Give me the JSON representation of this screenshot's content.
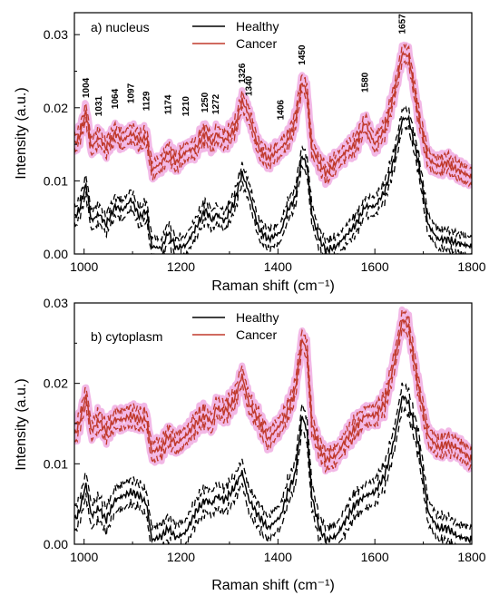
{
  "colors": {
    "healthy": "#000000",
    "cancer": "#c0392b",
    "cancer_band": "#f2b8e6"
  },
  "chart_data": [
    {
      "type": "line",
      "panel_label": "a) nucleus",
      "xlabel": "Raman shift (cm⁻¹)",
      "ylabel": "Intensity (a.u.)",
      "xlim": [
        980,
        1800
      ],
      "ylim": [
        0,
        0.033
      ],
      "x_ticks": [
        1000,
        1200,
        1400,
        1600,
        1800
      ],
      "x_tick_labels": [
        "1000",
        "1200",
        "1400",
        "1600",
        "1800"
      ],
      "y_ticks": [
        0,
        0.01,
        0.02,
        0.03
      ],
      "y_tick_labels": [
        "0.00",
        "0.01",
        "0.02",
        "0.03"
      ],
      "legend": {
        "placement": "top-center",
        "entries": [
          "Healthy",
          "Cancer"
        ]
      },
      "peak_labels": [
        "1004",
        "1031",
        "1064",
        "1097",
        "1129",
        "1174",
        "1210",
        "1250",
        "1272",
        "1326",
        "1340",
        "1406",
        "1450",
        "1580",
        "1657"
      ],
      "series": [
        {
          "name": "Healthy",
          "x": [
            980,
            990,
            1004,
            1015,
            1031,
            1045,
            1064,
            1080,
            1097,
            1115,
            1129,
            1135,
            1140,
            1160,
            1174,
            1190,
            1210,
            1230,
            1250,
            1265,
            1272,
            1290,
            1310,
            1326,
            1340,
            1360,
            1380,
            1406,
            1420,
            1435,
            1450,
            1460,
            1470,
            1485,
            1500,
            1520,
            1540,
            1560,
            1580,
            1600,
            1620,
            1640,
            1657,
            1670,
            1690,
            1710,
            1730,
            1750,
            1770,
            1800
          ],
          "y": [
            0.005,
            0.006,
            0.0095,
            0.0045,
            0.0055,
            0.004,
            0.0065,
            0.006,
            0.0075,
            0.005,
            0.006,
            0.003,
            0.001,
            0.0008,
            0.003,
            0.0008,
            0.0012,
            0.0035,
            0.006,
            0.0045,
            0.0055,
            0.0045,
            0.007,
            0.011,
            0.0085,
            0.0035,
            0.002,
            0.003,
            0.006,
            0.0075,
            0.0135,
            0.012,
            0.0055,
            0.002,
            0.0005,
            0.001,
            0.0025,
            0.004,
            0.0065,
            0.0065,
            0.0085,
            0.013,
            0.0185,
            0.0185,
            0.0125,
            0.004,
            0.002,
            0.002,
            0.0015,
            0.001
          ],
          "spread": 0.0013
        },
        {
          "name": "Cancer",
          "x": [
            980,
            990,
            1004,
            1015,
            1031,
            1045,
            1064,
            1080,
            1097,
            1115,
            1129,
            1135,
            1140,
            1160,
            1174,
            1190,
            1210,
            1230,
            1250,
            1265,
            1272,
            1290,
            1310,
            1326,
            1340,
            1360,
            1380,
            1406,
            1420,
            1435,
            1450,
            1460,
            1470,
            1485,
            1500,
            1520,
            1540,
            1560,
            1580,
            1600,
            1620,
            1640,
            1657,
            1670,
            1690,
            1710,
            1730,
            1750,
            1770,
            1800
          ],
          "y": [
            0.015,
            0.016,
            0.0195,
            0.0145,
            0.016,
            0.0145,
            0.0165,
            0.0155,
            0.0165,
            0.0155,
            0.016,
            0.0135,
            0.0115,
            0.0125,
            0.014,
            0.0125,
            0.014,
            0.0145,
            0.0165,
            0.015,
            0.0165,
            0.0155,
            0.017,
            0.021,
            0.019,
            0.0145,
            0.013,
            0.0145,
            0.0155,
            0.018,
            0.0235,
            0.022,
            0.0145,
            0.0125,
            0.011,
            0.0125,
            0.014,
            0.015,
            0.018,
            0.015,
            0.017,
            0.022,
            0.0275,
            0.027,
            0.019,
            0.013,
            0.012,
            0.0125,
            0.0115,
            0.0105
          ],
          "spread": 0.0011
        }
      ]
    },
    {
      "type": "line",
      "panel_label": "b) cytoplasm",
      "xlabel": "Raman shift (cm⁻¹)",
      "ylabel": "Intensity (a.u.)",
      "xlim": [
        980,
        1800
      ],
      "ylim": [
        0,
        0.03
      ],
      "x_ticks": [
        1000,
        1200,
        1400,
        1600,
        1800
      ],
      "x_tick_labels": [
        "1000",
        "1200",
        "1400",
        "1600",
        "1800"
      ],
      "y_ticks": [
        0,
        0.01,
        0.02,
        0.03
      ],
      "y_tick_labels": [
        "0.00",
        "0.01",
        "0.02",
        "0.03"
      ],
      "legend": {
        "placement": "top-center",
        "entries": [
          "Healthy",
          "Cancer"
        ]
      },
      "series": [
        {
          "name": "Healthy",
          "x": [
            980,
            990,
            1004,
            1015,
            1031,
            1045,
            1064,
            1080,
            1097,
            1115,
            1129,
            1135,
            1140,
            1160,
            1174,
            1190,
            1210,
            1230,
            1250,
            1265,
            1272,
            1290,
            1310,
            1326,
            1340,
            1360,
            1380,
            1406,
            1420,
            1435,
            1450,
            1460,
            1470,
            1485,
            1500,
            1520,
            1540,
            1560,
            1580,
            1600,
            1620,
            1640,
            1657,
            1670,
            1690,
            1710,
            1730,
            1750,
            1770,
            1800
          ],
          "y": [
            0.003,
            0.004,
            0.0075,
            0.0035,
            0.0045,
            0.003,
            0.0055,
            0.006,
            0.0065,
            0.006,
            0.005,
            0.0025,
            0.0005,
            0.001,
            0.002,
            0.0008,
            0.0015,
            0.004,
            0.0055,
            0.005,
            0.006,
            0.0055,
            0.007,
            0.009,
            0.0055,
            0.0035,
            0.002,
            0.0035,
            0.0065,
            0.0085,
            0.016,
            0.014,
            0.006,
            0.002,
            0.0005,
            0.001,
            0.003,
            0.005,
            0.006,
            0.0065,
            0.0085,
            0.013,
            0.0185,
            0.0175,
            0.0125,
            0.004,
            0.002,
            0.002,
            0.001,
            0.0005
          ],
          "spread": 0.0015
        },
        {
          "name": "Cancer",
          "x": [
            980,
            990,
            1004,
            1015,
            1031,
            1045,
            1064,
            1080,
            1097,
            1115,
            1129,
            1135,
            1140,
            1160,
            1174,
            1190,
            1210,
            1230,
            1250,
            1265,
            1272,
            1290,
            1310,
            1326,
            1340,
            1360,
            1380,
            1406,
            1420,
            1435,
            1450,
            1460,
            1470,
            1485,
            1500,
            1520,
            1540,
            1560,
            1580,
            1600,
            1620,
            1640,
            1657,
            1670,
            1690,
            1710,
            1730,
            1750,
            1770,
            1800
          ],
          "y": [
            0.0135,
            0.015,
            0.0185,
            0.014,
            0.0155,
            0.014,
            0.0155,
            0.0155,
            0.016,
            0.0155,
            0.0155,
            0.013,
            0.0115,
            0.012,
            0.0135,
            0.0125,
            0.0135,
            0.015,
            0.016,
            0.015,
            0.017,
            0.0165,
            0.018,
            0.021,
            0.0175,
            0.0155,
            0.013,
            0.015,
            0.0165,
            0.019,
            0.0255,
            0.024,
            0.015,
            0.012,
            0.0105,
            0.011,
            0.013,
            0.0145,
            0.016,
            0.016,
            0.0175,
            0.0225,
            0.028,
            0.027,
            0.0195,
            0.0135,
            0.012,
            0.0125,
            0.012,
            0.0105
          ],
          "spread": 0.0011
        }
      ]
    }
  ]
}
